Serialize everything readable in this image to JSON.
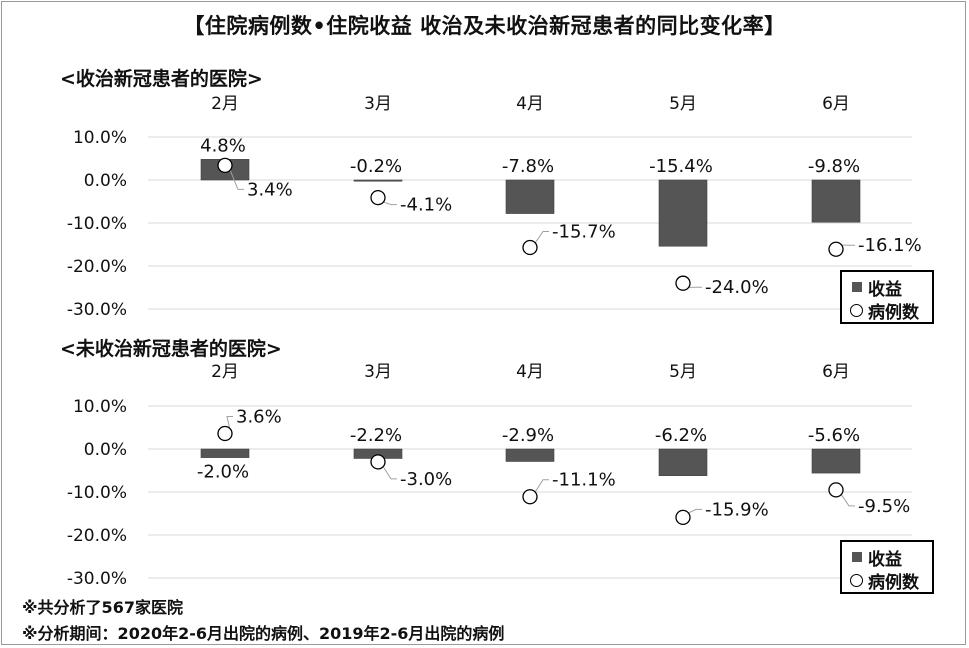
{
  "title": "【住院病例数•住院收益 收治及未收治新冠患者的同比变化率】",
  "chart_data": [
    {
      "type": "bar",
      "title": "<收治新冠患者的医院>",
      "categories": [
        "2月",
        "3月",
        "4月",
        "5月",
        "6月"
      ],
      "y_tick_labels": [
        "10.0%",
        "0.0%",
        "-10.0%",
        "-20.0%",
        "-30.0%"
      ],
      "ylim": [
        -30,
        10
      ],
      "grid": true,
      "series": [
        {
          "name": "收益",
          "type": "bar",
          "values": [
            4.8,
            -0.2,
            -7.8,
            -15.4,
            -9.8
          ],
          "labels": [
            "4.8%",
            "-0.2%",
            "-7.8%",
            "-15.4%",
            "-9.8%"
          ]
        },
        {
          "name": "病例数",
          "type": "scatter",
          "values": [
            3.4,
            -4.1,
            -15.7,
            -24.0,
            -16.1
          ],
          "labels": [
            "3.4%",
            "-4.1%",
            "-15.7%",
            "-24.0%",
            "-16.1%"
          ]
        }
      ],
      "legend": "bottom-right"
    },
    {
      "type": "bar",
      "title": "<未收治新冠患者的医院>",
      "categories": [
        "2月",
        "3月",
        "4月",
        "5月",
        "6月"
      ],
      "y_tick_labels": [
        "10.0%",
        "0.0%",
        "-10.0%",
        "-20.0%",
        "-30.0%"
      ],
      "ylim": [
        -30,
        10
      ],
      "grid": true,
      "series": [
        {
          "name": "收益",
          "type": "bar",
          "values": [
            -2.0,
            -2.2,
            -2.9,
            -6.2,
            -5.6
          ],
          "labels": [
            "-2.0%",
            "-2.2%",
            "-2.9%",
            "-6.2%",
            "-5.6%"
          ]
        },
        {
          "name": "病例数",
          "type": "scatter",
          "values": [
            3.6,
            -3.0,
            -11.1,
            -15.9,
            -9.5
          ],
          "labels": [
            "3.6%",
            "-3.0%",
            "-11.1%",
            "-15.9%",
            "-9.5%"
          ]
        }
      ],
      "legend": "bottom-right"
    }
  ],
  "colors": {
    "bar": "#555555",
    "grid": "#d9d9d9",
    "marker_fill": "#ffffff",
    "text": "#111111"
  },
  "notes": [
    "※共分析了567家医院",
    "※分析期间：2020年2-6月出院的病例、2019年2-6月出院的病例"
  ]
}
